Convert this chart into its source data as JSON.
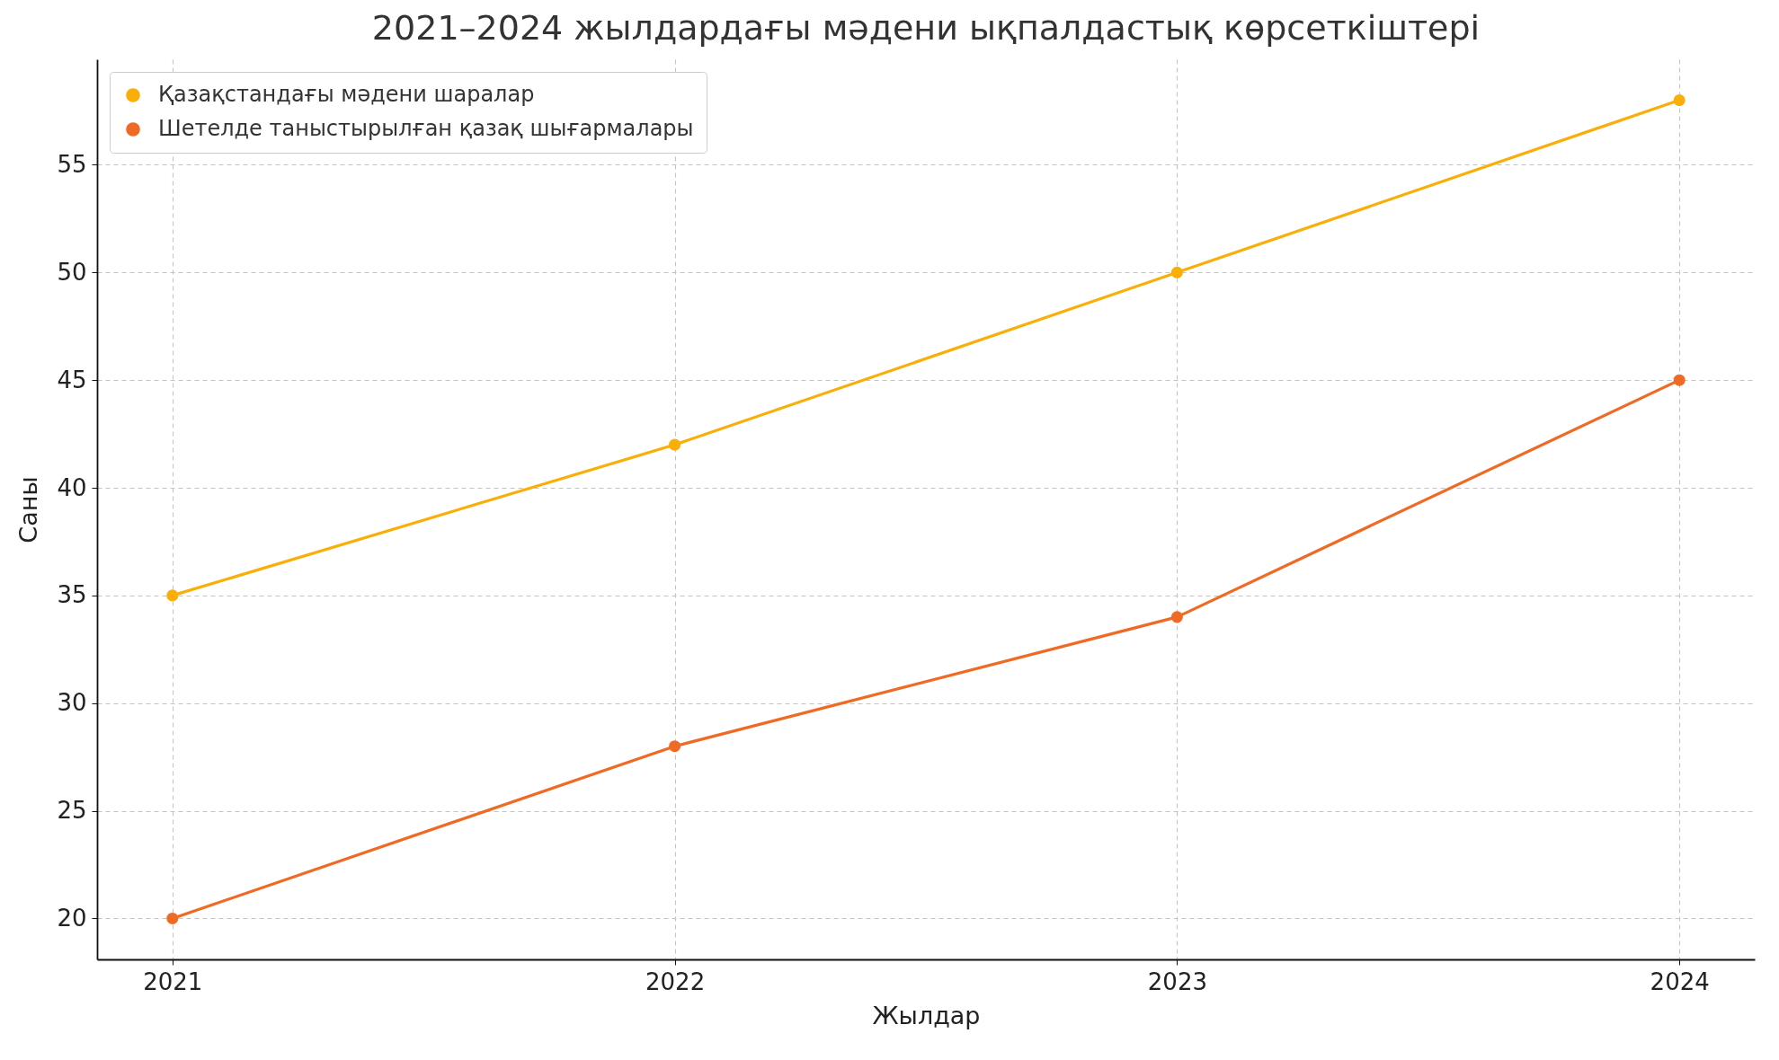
{
  "chart_data": {
    "type": "line",
    "title": "2021–2024 жылдардағы мәдени ықпалдастық көрсеткіштері",
    "xlabel": "Жылдар",
    "ylabel": "Саны",
    "x": [
      2021,
      2022,
      2023,
      2024
    ],
    "series": [
      {
        "name": "Қазақстандағы мәдени шаралар",
        "color": "#f9ae08",
        "values": [
          35,
          42,
          50,
          58
        ]
      },
      {
        "name": "Шетелде таныстырылған қазақ шығармалары",
        "color": "#ef6a24",
        "values": [
          20,
          28,
          34,
          45
        ]
      }
    ],
    "xlim": [
      2020.85,
      2024.15
    ],
    "xticks": [
      2021,
      2022,
      2023,
      2024
    ],
    "ylim": [
      18.1,
      59.9
    ],
    "yticks": [
      20,
      25,
      30,
      35,
      40,
      45,
      50,
      55
    ],
    "grid": true,
    "legend": "top left",
    "marker": "circle",
    "line_style": "solid"
  }
}
